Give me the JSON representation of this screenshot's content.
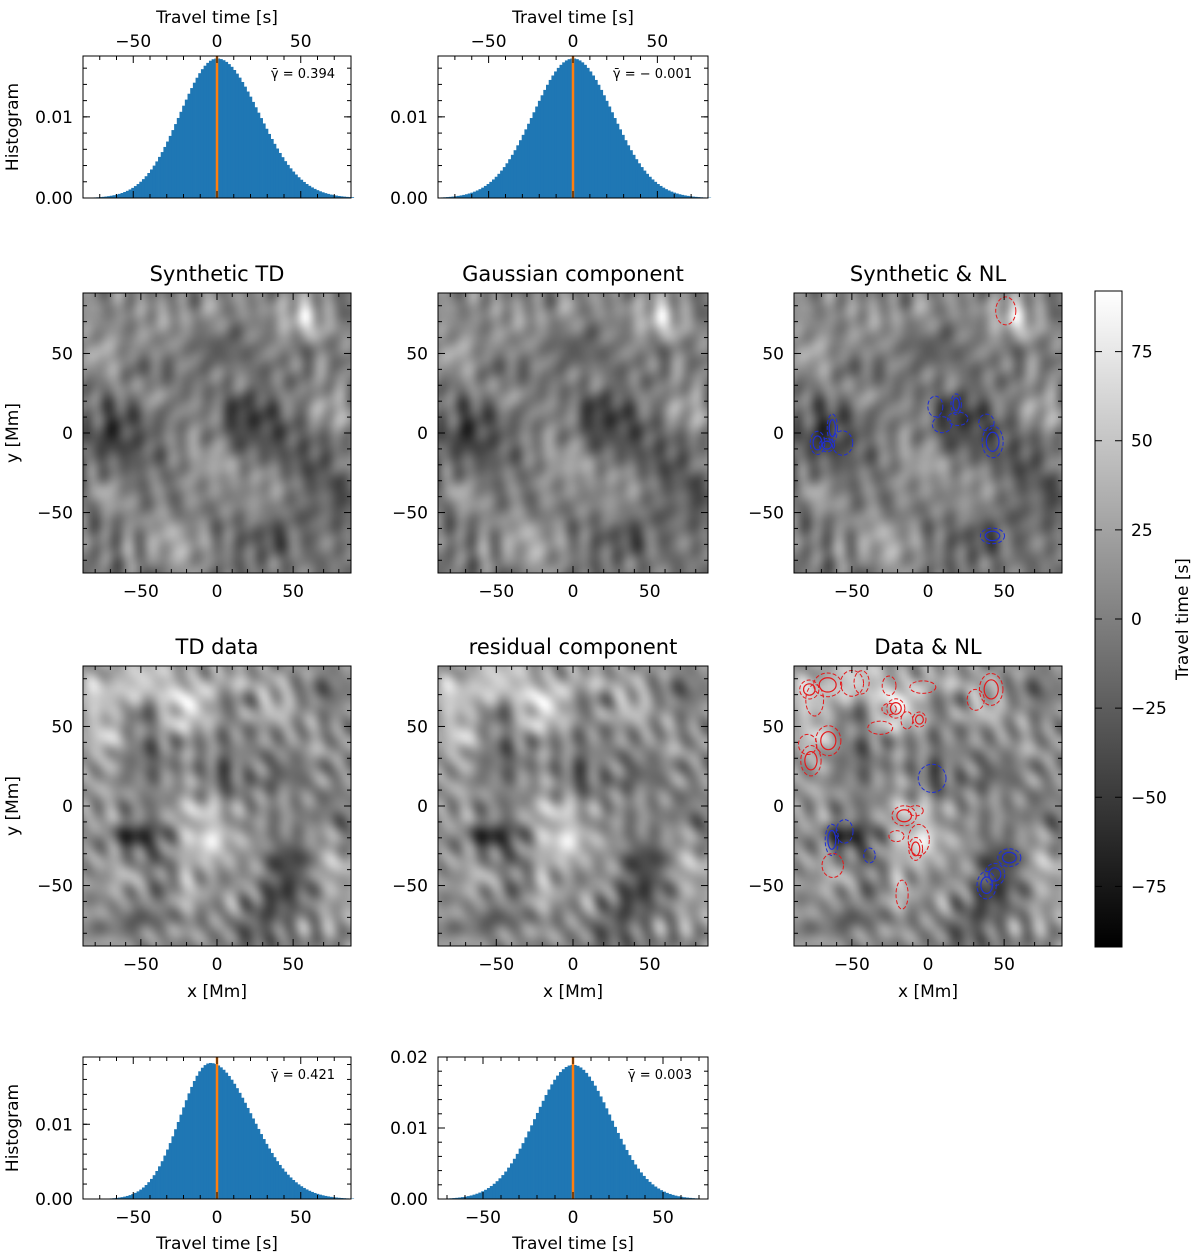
{
  "chart_data": [
    {
      "type": "histogram",
      "id": "hist-synthetic",
      "title": "",
      "xlabel": "Travel time [s]",
      "xlabel_position": "top",
      "ylabel": "Histogram",
      "xlim": [
        -80,
        80
      ],
      "ylim": [
        0,
        0.0175
      ],
      "xticks": [
        -50,
        0,
        50
      ],
      "yticks": [
        0.0,
        0.01
      ],
      "yticklabels": [
        "0.00",
        "0.01"
      ],
      "annotation": "γ̄ = 0.394",
      "mean_line_x": 0,
      "distribution": {
        "mean": 0,
        "sigma_left": 22,
        "sigma_right": 25,
        "peak": 0.0172
      },
      "bar_color": "#1f77b4",
      "line_color": "#ff7f0e"
    },
    {
      "type": "histogram",
      "id": "hist-gaussian",
      "title": "",
      "xlabel": "Travel time [s]",
      "xlabel_position": "top",
      "ylabel": "",
      "xlim": [
        -80,
        80
      ],
      "ylim": [
        0,
        0.0175
      ],
      "xticks": [
        -50,
        0,
        50
      ],
      "yticks": [
        0.0,
        0.01
      ],
      "yticklabels": [
        "0.00",
        "0.01"
      ],
      "annotation": "γ̄ = − 0.001",
      "mean_line_x": 0,
      "distribution": {
        "mean": 0,
        "sigma_left": 23.5,
        "sigma_right": 23.5,
        "peak": 0.0172
      },
      "bar_color": "#1f77b4",
      "line_color": "#ff7f0e"
    },
    {
      "type": "histogram",
      "id": "hist-data",
      "title": "",
      "xlabel": "Travel time [s]",
      "xlabel_position": "bottom",
      "ylabel": "Histogram",
      "xlim": [
        -80,
        80
      ],
      "ylim": [
        0,
        0.019
      ],
      "xticks": [
        -50,
        0,
        50
      ],
      "yticks": [
        0.0,
        0.01
      ],
      "yticklabels": [
        "0.00",
        "0.01"
      ],
      "annotation": "γ̄ = 0.421",
      "mean_line_x": 0,
      "distribution": {
        "mean": -4,
        "sigma_left": 18,
        "sigma_right": 25,
        "peak": 0.0182
      },
      "bar_color": "#1f77b4",
      "line_color": "#ff7f0e"
    },
    {
      "type": "histogram",
      "id": "hist-residual",
      "title": "",
      "xlabel": "Travel time [s]",
      "xlabel_position": "bottom",
      "ylabel": "",
      "xlim": [
        -75,
        75
      ],
      "ylim": [
        0,
        0.02
      ],
      "xticks": [
        -50,
        0,
        50
      ],
      "yticks": [
        0.0,
        0.01,
        0.02
      ],
      "yticklabels": [
        "0.00",
        "0.01",
        "0.02"
      ],
      "annotation": "γ̄ = 0.003",
      "mean_line_x": 0,
      "distribution": {
        "mean": 0,
        "sigma_left": 21,
        "sigma_right": 21,
        "peak": 0.0189
      },
      "bar_color": "#1f77b4",
      "line_color": "#ff7f0e"
    },
    {
      "type": "heatmap",
      "id": "map-synthetic-td",
      "title": "Synthetic TD",
      "xlabel": "",
      "ylabel": "y [Mm]",
      "xlim": [
        -88,
        88
      ],
      "ylim": [
        -88,
        88
      ],
      "xticks": [
        -50,
        0,
        50
      ],
      "yticks": [
        -50,
        0,
        50
      ],
      "colormap": "gray",
      "seed": 11,
      "contours": false
    },
    {
      "type": "heatmap",
      "id": "map-gaussian",
      "title": "Gaussian component",
      "xlabel": "",
      "ylabel": "",
      "xlim": [
        -88,
        88
      ],
      "ylim": [
        -88,
        88
      ],
      "xticks": [
        -50,
        0,
        50
      ],
      "yticks": [
        -50,
        0,
        50
      ],
      "colormap": "gray",
      "seed": 11,
      "contours": false
    },
    {
      "type": "heatmap",
      "id": "map-synthetic-nl",
      "title": "Synthetic & NL",
      "xlabel": "",
      "ylabel": "",
      "xlim": [
        -88,
        88
      ],
      "ylim": [
        -88,
        88
      ],
      "xticks": [
        -50,
        0,
        50
      ],
      "yticks": [
        -50,
        0,
        50
      ],
      "colormap": "gray",
      "seed": 11,
      "contours": true,
      "contour_colors": {
        "positive": "#e41a1c",
        "negative": "#1f2fd6"
      }
    },
    {
      "type": "heatmap",
      "id": "map-td-data",
      "title": "TD data",
      "xlabel": "x [Mm]",
      "ylabel": "y [Mm]",
      "xlim": [
        -88,
        88
      ],
      "ylim": [
        -88,
        88
      ],
      "xticks": [
        -50,
        0,
        50
      ],
      "yticks": [
        -50,
        0,
        50
      ],
      "colormap": "gray",
      "seed": 27,
      "contours": false
    },
    {
      "type": "heatmap",
      "id": "map-residual",
      "title": "residual component",
      "xlabel": "x [Mm]",
      "ylabel": "",
      "xlim": [
        -88,
        88
      ],
      "ylim": [
        -88,
        88
      ],
      "xticks": [
        -50,
        0,
        50
      ],
      "yticks": [
        -50,
        0,
        50
      ],
      "colormap": "gray",
      "seed": 27,
      "contours": false
    },
    {
      "type": "heatmap",
      "id": "map-data-nl",
      "title": "Data & NL",
      "xlabel": "x [Mm]",
      "ylabel": "",
      "xlim": [
        -88,
        88
      ],
      "ylim": [
        -88,
        88
      ],
      "xticks": [
        -50,
        0,
        50
      ],
      "yticks": [
        -50,
        0,
        50
      ],
      "colormap": "gray",
      "seed": 27,
      "contours": true,
      "contour_colors": {
        "positive": "#e41a1c",
        "negative": "#1f2fd6"
      }
    }
  ],
  "colorbar": {
    "label": "Travel time [s]",
    "range": [
      -92,
      92
    ],
    "ticks": [
      -75,
      -50,
      -25,
      0,
      25,
      50,
      75
    ],
    "ticklabels": [
      "−75",
      "−50",
      "−25",
      "0",
      "25",
      "50",
      "75"
    ],
    "colormap": "gray"
  }
}
